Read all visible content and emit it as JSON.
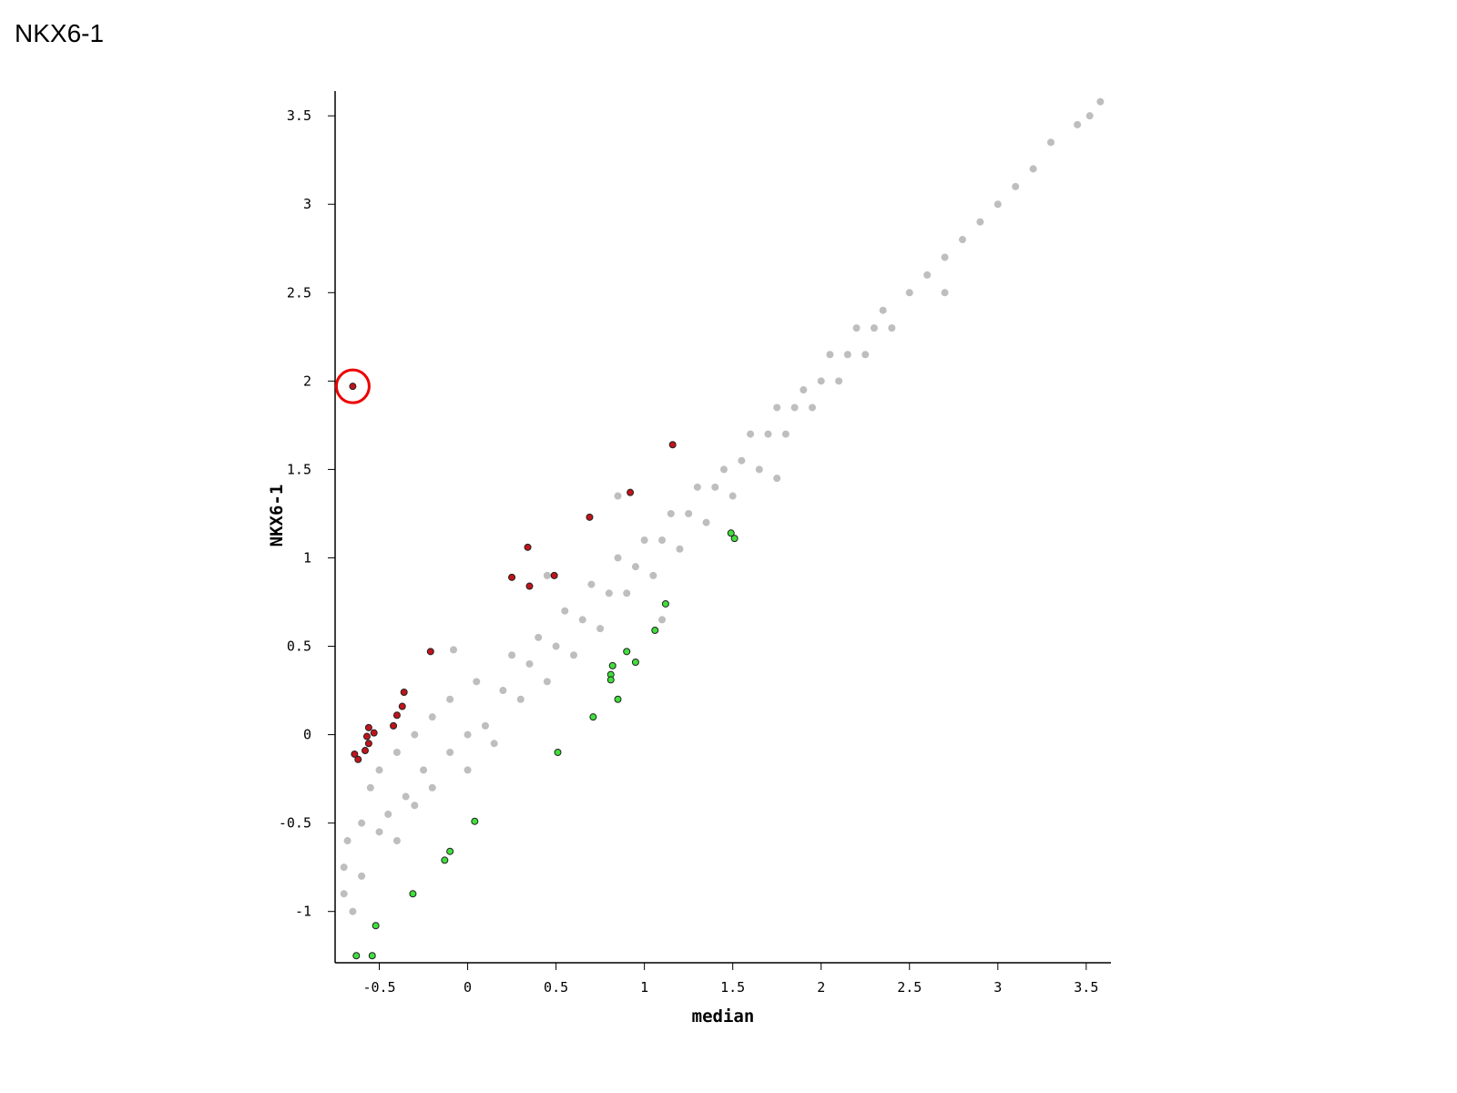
{
  "chart_data": {
    "type": "scatter",
    "title": "NKX6-1",
    "xlabel": "median",
    "ylabel": "NKX6-1",
    "xlim": [
      -0.75,
      3.64
    ],
    "ylim": [
      -1.29,
      3.64
    ],
    "xticks": [
      -0.5,
      0,
      0.5,
      1,
      1.5,
      2,
      2.5,
      3,
      3.5
    ],
    "yticks": [
      -1,
      -0.5,
      0,
      0.5,
      1,
      1.5,
      2,
      2.5,
      3,
      3.5
    ],
    "series": [
      {
        "color": "#bebebe",
        "x": [
          -0.7,
          -0.7,
          -0.68,
          -0.65,
          -0.6,
          -0.6,
          -0.55,
          -0.5,
          -0.5,
          -0.45,
          -0.4,
          -0.4,
          -0.35,
          -0.3,
          -0.3,
          -0.25,
          -0.2,
          -0.2,
          -0.1,
          -0.1,
          0,
          0,
          0.05,
          0.1,
          0.15,
          0.2,
          0.25,
          0.3,
          0.35,
          0.4,
          0.45,
          0.5,
          0.55,
          0.6,
          0.65,
          0.7,
          0.75,
          0.8,
          0.85,
          0.9,
          0.95,
          1.0,
          1.05,
          1.1,
          1.15,
          1.2,
          1.25,
          1.3,
          1.35,
          1.4,
          1.45,
          1.5,
          1.55,
          1.6,
          1.65,
          1.7,
          1.75,
          1.8,
          1.85,
          1.9,
          1.95,
          2.0,
          2.05,
          2.1,
          2.15,
          2.2,
          2.25,
          2.3,
          2.35,
          2.4,
          2.5,
          2.6,
          2.7,
          2.8,
          2.9,
          3.0,
          3.1,
          3.2,
          3.3,
          3.45,
          3.52,
          3.58,
          -0.08,
          0.85,
          1.75,
          2.7,
          1.1,
          0.45
        ],
        "y": [
          -0.75,
          -0.9,
          -0.6,
          -1.0,
          -0.5,
          -0.8,
          -0.3,
          -0.55,
          -0.2,
          -0.45,
          -0.1,
          -0.6,
          -0.35,
          0.0,
          -0.4,
          -0.2,
          0.1,
          -0.3,
          -0.1,
          0.2,
          0,
          -0.2,
          0.3,
          0.05,
          -0.05,
          0.25,
          0.45,
          0.2,
          0.4,
          0.55,
          0.3,
          0.5,
          0.7,
          0.45,
          0.65,
          0.85,
          0.6,
          0.8,
          1.0,
          0.8,
          0.95,
          1.1,
          0.9,
          1.1,
          1.25,
          1.05,
          1.25,
          1.4,
          1.2,
          1.4,
          1.5,
          1.35,
          1.55,
          1.7,
          1.5,
          1.7,
          1.85,
          1.7,
          1.85,
          1.95,
          1.85,
          2.0,
          2.15,
          2.0,
          2.15,
          2.3,
          2.15,
          2.3,
          2.4,
          2.3,
          2.5,
          2.6,
          2.7,
          2.8,
          2.9,
          3.0,
          3.1,
          3.2,
          3.35,
          3.45,
          3.5,
          3.58,
          0.48,
          1.35,
          1.45,
          2.5,
          0.65,
          0.9
        ]
      },
      {
        "color": "#c0141c",
        "x": [
          -0.65,
          1.16,
          0.92,
          0.69,
          0.34,
          0.49,
          0.25,
          0.35,
          -0.21,
          -0.36,
          -0.37,
          -0.4,
          -0.42,
          -0.56,
          -0.53,
          -0.57,
          -0.56,
          -0.58,
          -0.64,
          -0.62
        ],
        "y": [
          1.97,
          1.64,
          1.37,
          1.23,
          1.06,
          0.9,
          0.89,
          0.84,
          0.47,
          0.24,
          0.16,
          0.11,
          0.05,
          0.04,
          0.01,
          -0.01,
          -0.05,
          -0.09,
          -0.11,
          -0.14
        ]
      },
      {
        "color": "#3fe03a",
        "x": [
          1.49,
          1.51,
          1.12,
          1.06,
          0.9,
          0.95,
          0.82,
          0.81,
          0.81,
          0.85,
          0.71,
          0.51,
          0.04,
          -0.1,
          -0.13,
          -0.31,
          -0.52,
          -0.54,
          -0.63
        ],
        "y": [
          1.14,
          1.11,
          0.74,
          0.59,
          0.47,
          0.41,
          0.39,
          0.34,
          0.31,
          0.2,
          0.1,
          -0.1,
          -0.49,
          -0.66,
          -0.71,
          -0.9,
          -1.08,
          -1.25,
          -1.25
        ]
      }
    ]
  }
}
